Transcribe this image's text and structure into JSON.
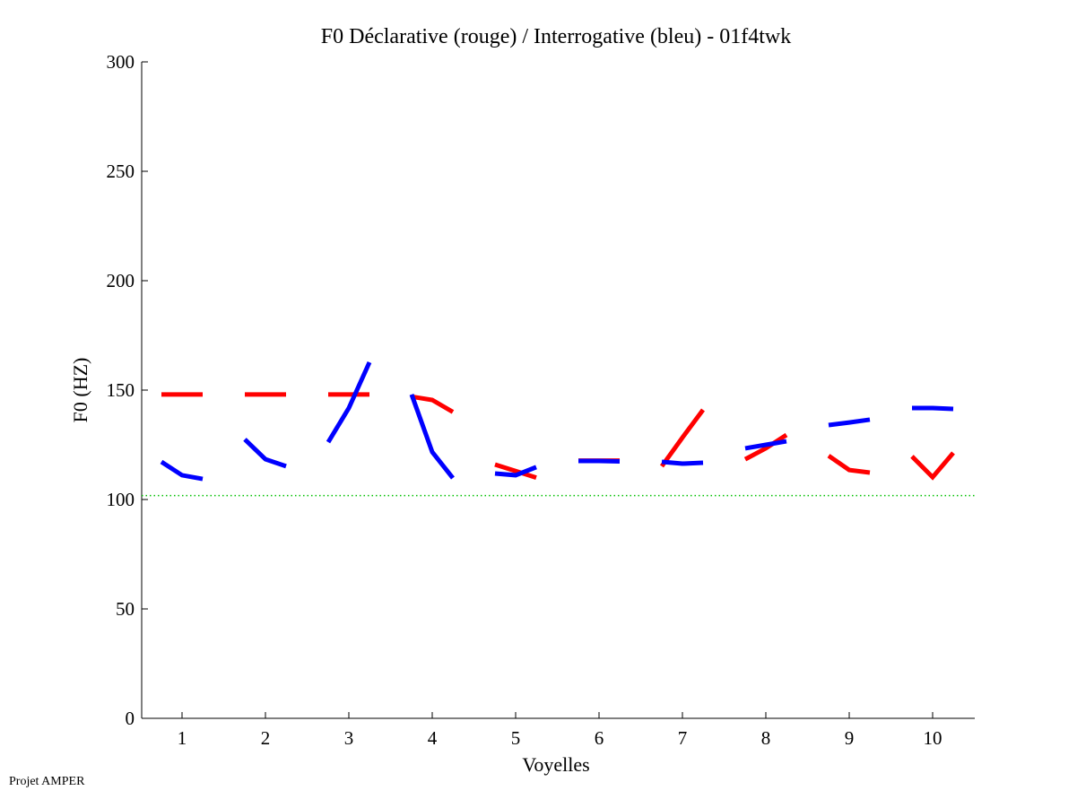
{
  "chart_data": {
    "type": "line",
    "title": "F0 Déclarative (rouge) / Interrogative (bleu) - 01f4twk",
    "xlabel": "Voyelles",
    "ylabel": "F0 (HZ)",
    "xlim": [
      0.5,
      10.5
    ],
    "ylim": [
      0,
      300
    ],
    "xticks": [
      1,
      2,
      3,
      4,
      5,
      6,
      7,
      8,
      9,
      10
    ],
    "yticks": [
      0,
      50,
      100,
      150,
      200,
      250,
      300
    ],
    "grid": false,
    "reference_line": {
      "y": 101.8,
      "color": "#00c000",
      "style": "dotted"
    },
    "series": [
      {
        "name": "Déclarative (rouge)",
        "color": "#ff0000",
        "segments": [
          {
            "vowel": 1,
            "values": [
              148,
              148,
              148
            ]
          },
          {
            "vowel": 2,
            "values": [
              148,
              148,
              148
            ]
          },
          {
            "vowel": 3,
            "values": [
              148,
              148,
              148
            ]
          },
          {
            "vowel": 4,
            "values": [
              147,
              145.5,
              140
            ]
          },
          {
            "vowel": 5,
            "values": [
              116,
              113,
              110
            ]
          },
          {
            "vowel": 6,
            "values": [
              117.8,
              117.8,
              117.8
            ]
          },
          {
            "vowel": 7,
            "values": [
              115.2,
              128.3,
              141
            ]
          },
          {
            "vowel": 8,
            "values": [
              118.4,
              123.4,
              129.5
            ]
          },
          {
            "vowel": 9,
            "values": [
              120,
              113.5,
              112.3
            ]
          },
          {
            "vowel": 10,
            "values": [
              119.7,
              110.2,
              121.3
            ]
          }
        ]
      },
      {
        "name": "Interrogative (bleu)",
        "color": "#0000ff",
        "segments": [
          {
            "vowel": 1,
            "values": [
              117.2,
              111.1,
              109.4
            ]
          },
          {
            "vowel": 2,
            "values": [
              127.5,
              118.4,
              115.2
            ]
          },
          {
            "vowel": 3,
            "values": [
              126.2,
              141.8,
              162.7
            ]
          },
          {
            "vowel": 4,
            "values": [
              148,
              121.7,
              109.8
            ]
          },
          {
            "vowel": 5,
            "values": [
              111.9,
              111.1,
              114.8
            ]
          },
          {
            "vowel": 6,
            "values": [
              117.6,
              117.6,
              117.4
            ]
          },
          {
            "vowel": 7,
            "values": [
              117.2,
              116.4,
              116.8
            ]
          },
          {
            "vowel": 8,
            "values": [
              123.4,
              125,
              126.6
            ]
          },
          {
            "vowel": 9,
            "values": [
              134,
              135.2,
              136.5
            ]
          },
          {
            "vowel": 10,
            "values": [
              141.8,
              141.8,
              141.4
            ]
          }
        ]
      }
    ]
  },
  "footer": "Projet AMPER"
}
